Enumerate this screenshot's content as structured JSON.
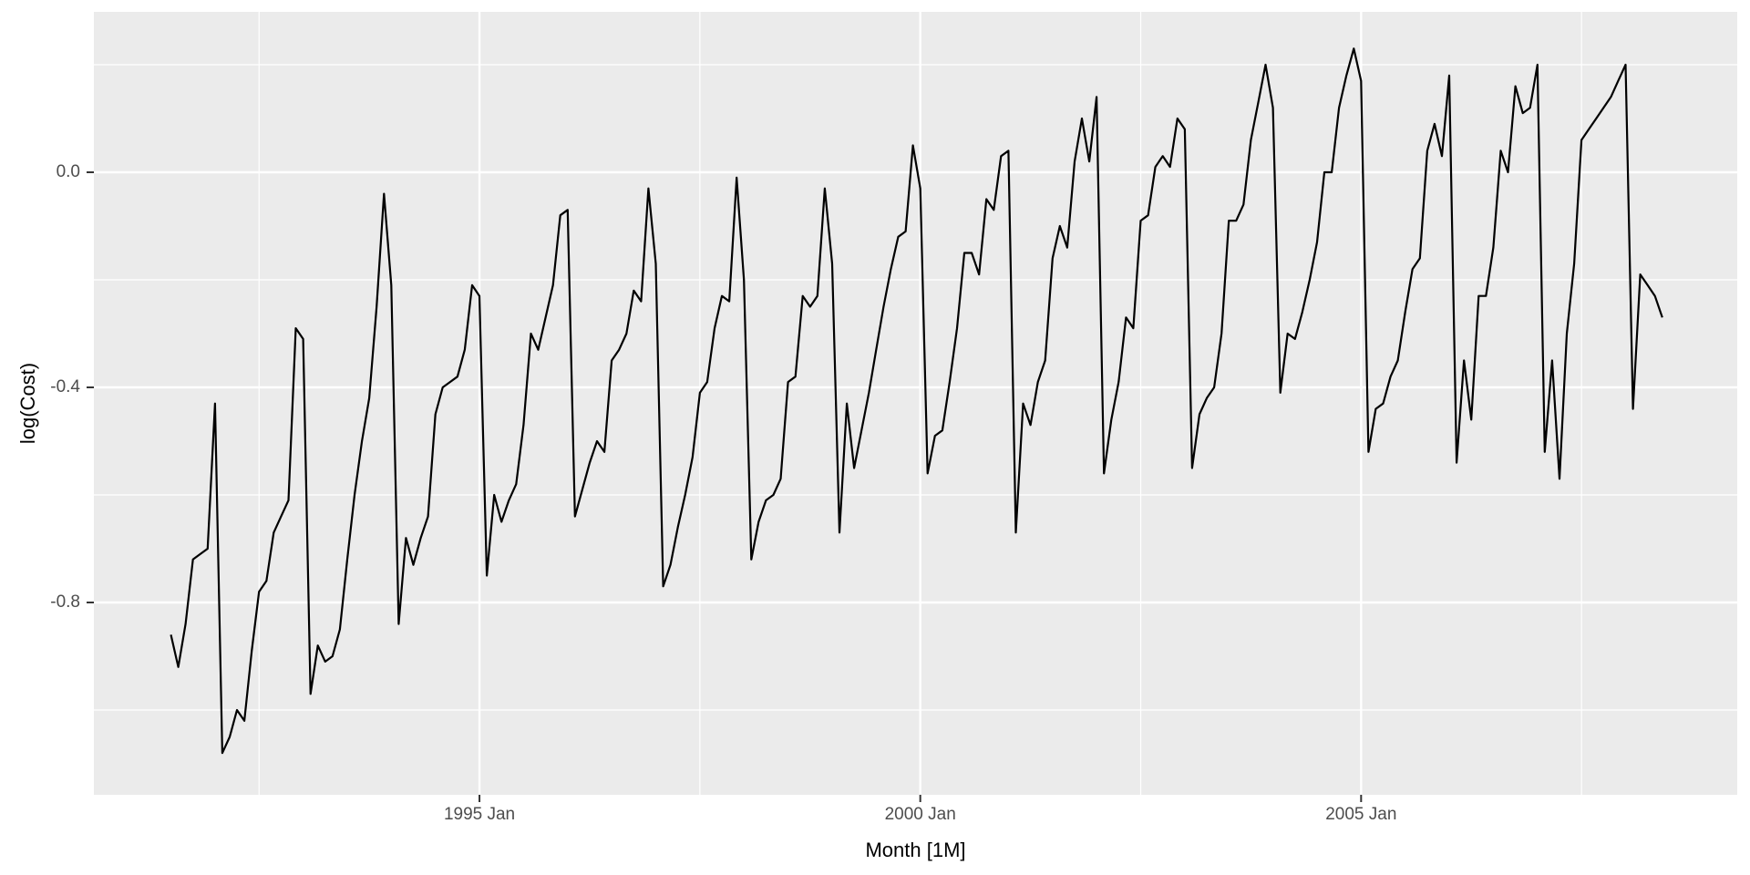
{
  "figure": {
    "kind": "ggplot2-style time-series line chart",
    "background_color": "#FFFFFF",
    "panel_color": "#EBEBEB",
    "grid_color": "#FFFFFF",
    "line_color": "#000000",
    "tick_text_color": "#4D4D4D",
    "tick_mark_color": "#333333",
    "axis_title_color": "#000000"
  },
  "chart_data": {
    "type": "line",
    "title": "",
    "xlabel": "Month [1M]",
    "ylabel": "log(Cost)",
    "x_start": "1991 Jul",
    "x_end": "2008 Jun",
    "frequency": "monthly",
    "grid": true,
    "legend_position": "none",
    "ylim_shown": [
      -1.14,
      0.3
    ],
    "y_major_ticks": [
      {
        "label": "0.0",
        "value": 0.0
      },
      {
        "label": "-0.4",
        "value": -0.4
      },
      {
        "label": "-0.8",
        "value": -0.8
      }
    ],
    "y_minor_values": [
      0.2,
      -0.2,
      -0.6,
      -1.0
    ],
    "x_major_ticks": [
      {
        "label": "1995 Jan",
        "month_index": 42
      },
      {
        "label": "2000 Jan",
        "month_index": 102
      },
      {
        "label": "2005 Jan",
        "month_index": 162
      }
    ],
    "x_minor_ticks": [
      {
        "label": "1992 Jul",
        "month_index": 12
      },
      {
        "label": "1997 Jul",
        "month_index": 72
      },
      {
        "label": "2002 Jul",
        "month_index": 132
      },
      {
        "label": "2007 Jul",
        "month_index": 192
      }
    ],
    "series": [
      {
        "name": "log(Cost)",
        "start_month": "1991-07",
        "values": [
          -0.86,
          -0.92,
          -0.84,
          -0.72,
          -0.71,
          -0.7,
          -0.43,
          -1.08,
          -1.05,
          -1.0,
          -1.02,
          -0.89,
          -0.78,
          -0.76,
          -0.67,
          -0.64,
          -0.61,
          -0.29,
          -0.31,
          -0.97,
          -0.88,
          -0.91,
          -0.9,
          -0.85,
          -0.72,
          -0.6,
          -0.5,
          -0.42,
          -0.25,
          -0.04,
          -0.21,
          -0.84,
          -0.68,
          -0.73,
          -0.68,
          -0.64,
          -0.45,
          -0.4,
          -0.39,
          -0.38,
          -0.33,
          -0.21,
          -0.23,
          -0.75,
          -0.6,
          -0.65,
          -0.61,
          -0.58,
          -0.47,
          -0.3,
          -0.33,
          -0.27,
          -0.21,
          -0.08,
          -0.07,
          -0.64,
          -0.59,
          -0.54,
          -0.5,
          -0.52,
          -0.35,
          -0.33,
          -0.3,
          -0.22,
          -0.24,
          -0.03,
          -0.17,
          -0.77,
          -0.73,
          -0.66,
          -0.6,
          -0.53,
          -0.41,
          -0.39,
          -0.29,
          -0.23,
          -0.24,
          -0.01,
          -0.2,
          -0.72,
          -0.65,
          -0.61,
          -0.6,
          -0.57,
          -0.39,
          -0.38,
          -0.23,
          -0.25,
          -0.23,
          -0.03,
          -0.17,
          -0.67,
          -0.43,
          -0.55,
          -0.48,
          -0.41,
          -0.33,
          -0.25,
          -0.18,
          -0.12,
          -0.11,
          0.05,
          -0.03,
          -0.56,
          -0.49,
          -0.48,
          -0.39,
          -0.29,
          -0.15,
          -0.15,
          -0.19,
          -0.05,
          -0.07,
          0.03,
          0.04,
          -0.67,
          -0.43,
          -0.47,
          -0.39,
          -0.35,
          -0.16,
          -0.1,
          -0.14,
          0.02,
          0.1,
          0.02,
          0.14,
          -0.56,
          -0.46,
          -0.39,
          -0.27,
          -0.29,
          -0.09,
          -0.08,
          0.01,
          0.03,
          0.01,
          0.1,
          0.08,
          -0.55,
          -0.45,
          -0.42,
          -0.4,
          -0.3,
          -0.09,
          -0.09,
          -0.06,
          0.06,
          0.13,
          0.2,
          0.12,
          -0.41,
          -0.3,
          -0.31,
          -0.26,
          -0.2,
          -0.13,
          0.0,
          0.0,
          0.12,
          0.18,
          0.23,
          0.17,
          -0.52,
          -0.44,
          -0.43,
          -0.38,
          -0.35,
          -0.26,
          -0.18,
          -0.16,
          0.04,
          0.09,
          0.03,
          0.18,
          -0.54,
          -0.35,
          -0.46,
          -0.23,
          -0.23,
          -0.14,
          0.04,
          0.0,
          0.16,
          0.11,
          0.12,
          0.2,
          -0.52,
          -0.35,
          -0.57,
          -0.3,
          -0.17,
          0.06,
          0.08,
          0.1,
          0.12,
          0.14,
          0.17,
          0.2,
          -0.44,
          -0.19,
          -0.21,
          -0.23,
          -0.27
        ]
      }
    ]
  }
}
